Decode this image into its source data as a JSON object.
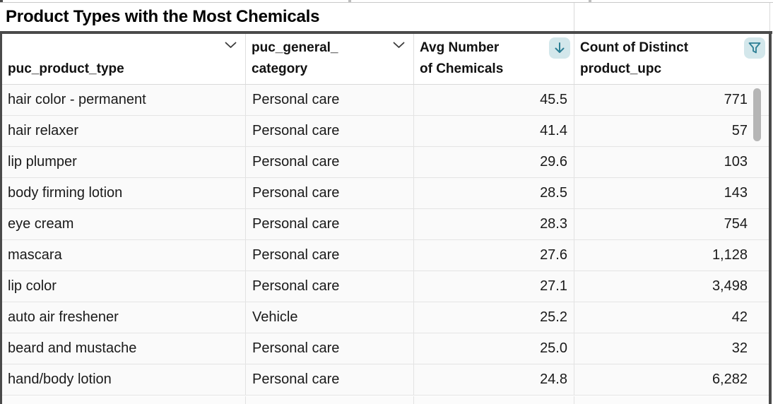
{
  "title": "Product Types with the Most Chemicals",
  "table": {
    "columns": [
      {
        "id": "puc_product_type",
        "line1": "",
        "line2": "puc_product_type",
        "icon": "chevron-down",
        "align": "left"
      },
      {
        "id": "puc_general_category",
        "line1": "puc_general_",
        "line2": "category",
        "icon": "chevron-down",
        "align": "left"
      },
      {
        "id": "avg_chemicals",
        "line1": "Avg Number",
        "line2": "of Chemicals",
        "icon": "sort-descending",
        "align": "right"
      },
      {
        "id": "product_upc",
        "line1": "Count of Distinct",
        "line2": "product_upc",
        "icon": "filter",
        "align": "right"
      }
    ],
    "rows": [
      [
        "hair color - permanent",
        "Personal care",
        "45.5",
        "771"
      ],
      [
        "hair relaxer",
        "Personal care",
        "41.4",
        "57"
      ],
      [
        "lip plumper",
        "Personal care",
        "29.6",
        "103"
      ],
      [
        "body firming lotion",
        "Personal care",
        "28.5",
        "143"
      ],
      [
        "eye cream",
        "Personal care",
        "28.3",
        "754"
      ],
      [
        "mascara",
        "Personal care",
        "27.6",
        "1,128"
      ],
      [
        "lip color",
        "Personal care",
        "27.1",
        "3,498"
      ],
      [
        "auto air freshener",
        "Vehicle",
        "25.2",
        "42"
      ],
      [
        "beard and mustache",
        "Personal care",
        "25.0",
        "32"
      ],
      [
        "hand/body lotion",
        "Personal care",
        "24.8",
        "6,282"
      ]
    ]
  },
  "scrollbar": {
    "orientation": "vertical",
    "thumb_visible": true
  },
  "colors": {
    "accent_teal": "#2b7e94",
    "badge_background": "#d3e7eb",
    "dark_border": "#4a4a4a",
    "light_border": "#e2e2e2",
    "row_background": "#fafafa",
    "text": "#1a1a1a",
    "scrollbar_thumb": "#b5b5b5"
  }
}
